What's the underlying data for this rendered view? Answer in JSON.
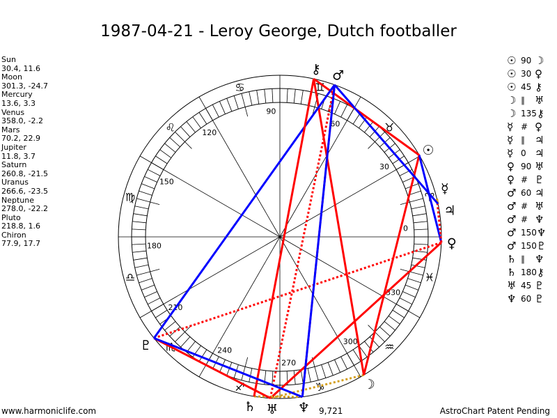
{
  "title": "1987-04-21 - Leroy George, Dutch footballer",
  "planets": [
    {
      "name": "Sun",
      "coords": "30.4, 11.6",
      "lon": 30.4,
      "glyph": "☉"
    },
    {
      "name": "Moon",
      "coords": "301.3, -24.7",
      "lon": 301.3,
      "glyph": "☽"
    },
    {
      "name": "Mercury",
      "coords": "13.6, 3.3",
      "lon": 13.6,
      "glyph": "☿"
    },
    {
      "name": "Venus",
      "coords": "358.0, -2.2",
      "lon": 358.0,
      "glyph": "♀"
    },
    {
      "name": "Mars",
      "coords": "70.2, 22.9",
      "lon": 70.2,
      "glyph": "♂"
    },
    {
      "name": "Jupiter",
      "coords": "11.8, 3.7",
      "lon": 11.8,
      "glyph": "♃"
    },
    {
      "name": "Saturn",
      "coords": "260.8, -21.5",
      "lon": 260.8,
      "glyph": "♄"
    },
    {
      "name": "Uranus",
      "coords": "266.6, -23.5",
      "lon": 266.6,
      "glyph": "♅"
    },
    {
      "name": "Neptune",
      "coords": "278.0, -22.2",
      "lon": 278.0,
      "glyph": "♆"
    },
    {
      "name": "Pluto",
      "coords": "218.8, 1.6",
      "lon": 218.8,
      "glyph": "♇"
    },
    {
      "name": "Chiron",
      "coords": "77.9, 17.7",
      "lon": 77.9,
      "glyph": "⚷"
    }
  ],
  "aspects": [
    {
      "a": "☉",
      "k": "90",
      "b": "☽",
      "from": 0,
      "to": 1,
      "color": "#ff0000",
      "style": "solid"
    },
    {
      "a": "☉",
      "k": "30",
      "b": "♀",
      "from": 0,
      "to": 3,
      "color": "#0000ff",
      "style": "solid"
    },
    {
      "a": "☉",
      "k": "45",
      "b": "⚷",
      "from": 0,
      "to": 10,
      "color": "#ff0000",
      "style": "solid"
    },
    {
      "a": "☽",
      "k": "∥",
      "b": "♅",
      "from": 1,
      "to": 7,
      "color": "#d4a020",
      "style": "dotted"
    },
    {
      "a": "☽",
      "k": "135",
      "b": "⚷",
      "from": 1,
      "to": 10,
      "color": "#ff0000",
      "style": "solid"
    },
    {
      "a": "☿",
      "k": "#",
      "b": "♀",
      "from": 2,
      "to": 3,
      "color": "#ff0000",
      "style": "dotted"
    },
    {
      "a": "☿",
      "k": "∥",
      "b": "♃",
      "from": 2,
      "to": 5,
      "color": "#d4a020",
      "style": "dotted"
    },
    {
      "a": "☿",
      "k": "0",
      "b": "♃",
      "from": 2,
      "to": 5,
      "color": "#d4a020",
      "style": "solid"
    },
    {
      "a": "♀",
      "k": "90",
      "b": "♅",
      "from": 3,
      "to": 7,
      "color": "#ff0000",
      "style": "solid"
    },
    {
      "a": "♀",
      "k": "#",
      "b": "♇",
      "from": 3,
      "to": 9,
      "color": "#ff0000",
      "style": "dotted"
    },
    {
      "a": "♂",
      "k": "60",
      "b": "♃",
      "from": 4,
      "to": 5,
      "color": "#0000ff",
      "style": "solid"
    },
    {
      "a": "♂",
      "k": "#",
      "b": "♅",
      "from": 4,
      "to": 7,
      "color": "#ff0000",
      "style": "dotted"
    },
    {
      "a": "♂",
      "k": "#",
      "b": "♆",
      "from": 4,
      "to": 8,
      "color": "#ff0000",
      "style": "dotted"
    },
    {
      "a": "♂",
      "k": "150",
      "b": "♆",
      "from": 4,
      "to": 8,
      "color": "#0000ff",
      "style": "solid"
    },
    {
      "a": "♂",
      "k": "150",
      "b": "♇",
      "from": 4,
      "to": 9,
      "color": "#0000ff",
      "style": "solid"
    },
    {
      "a": "♄",
      "k": "∥",
      "b": "♆",
      "from": 6,
      "to": 8,
      "color": "#d4a020",
      "style": "dotted"
    },
    {
      "a": "♄",
      "k": "180",
      "b": "⚷",
      "from": 6,
      "to": 10,
      "color": "#ff0000",
      "style": "solid"
    },
    {
      "a": "♅",
      "k": "45",
      "b": "♇",
      "from": 7,
      "to": 9,
      "color": "#ff0000",
      "style": "solid"
    },
    {
      "a": "♆",
      "k": "60",
      "b": "♇",
      "from": 8,
      "to": 9,
      "color": "#0000ff",
      "style": "solid"
    }
  ],
  "degree_labels": [
    "0",
    "30",
    "60",
    "90",
    "120",
    "150",
    "180",
    "210",
    "240",
    "270",
    "300",
    "330"
  ],
  "signs": [
    "♈",
    "♉",
    "♊",
    "♋",
    "♌",
    "♍",
    "♎",
    "♏",
    "♐",
    "♑",
    "♒",
    "♓"
  ],
  "extra_text": "9,721",
  "footer": {
    "left": "www.harmoniclife.com",
    "right": "AstroChart Patent Pending"
  }
}
